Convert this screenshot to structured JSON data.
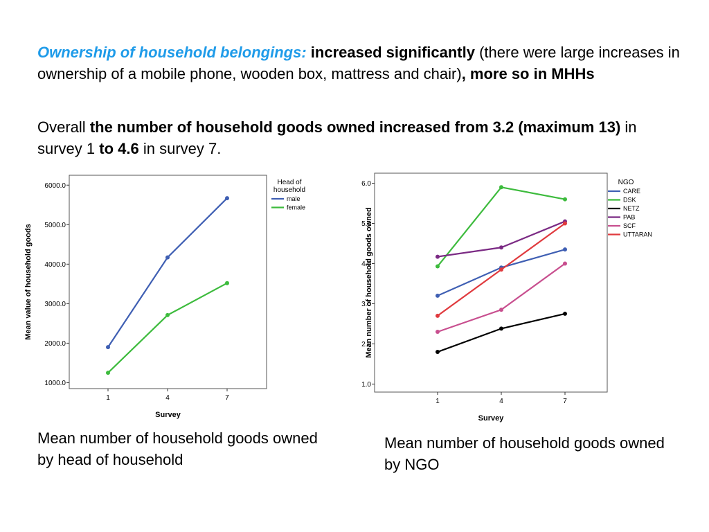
{
  "text": {
    "p1": {
      "heading": "Ownership of household belongings:",
      "bold1": "increased significantly",
      "plain1": "(there were large increases in ownership of a mobile phone, wooden box, mattress and chair)",
      "bold2": ", more so in MHHs"
    },
    "p2": {
      "plain1": "Overall",
      "bold1": "the number of household goods owned increased from 3.2 (maximum 13)",
      "plain2": "in survey 1",
      "bold2": "to 4.6",
      "plain3": "in survey 7."
    },
    "caption_left": "Mean number of household goods owned by head of household",
    "caption_right": "Mean number of household goods owned by NGO"
  },
  "colors": {
    "heading": "#1e9be9"
  },
  "chart_data": [
    {
      "type": "line",
      "title": "",
      "xlabel": "Survey",
      "ylabel": "Mean value of household goods",
      "categories": [
        "1",
        "4",
        "7"
      ],
      "yticks": [
        "1000.0",
        "2000.0",
        "3000.0",
        "4000.0",
        "5000.0",
        "6000.0"
      ],
      "ylim": [
        1000,
        6000
      ],
      "ydomain": [
        850,
        6250
      ],
      "legend_title": "Head of household",
      "legend_position": "top-right-outside",
      "grid": false,
      "series": [
        {
          "name": "male",
          "color": "#3f5fb3",
          "values": [
            1900,
            4170,
            5670
          ]
        },
        {
          "name": "female",
          "color": "#3dbb3d",
          "values": [
            1250,
            2710,
            3520
          ]
        }
      ]
    },
    {
      "type": "line",
      "title": "",
      "xlabel": "Survey",
      "ylabel": "Mean number of household goods owned",
      "categories": [
        "1",
        "4",
        "7"
      ],
      "yticks": [
        "1.0",
        "2.0",
        "3.0",
        "4.0",
        "5.0",
        "6.0"
      ],
      "ylim": [
        1,
        6
      ],
      "ydomain": [
        0.8,
        6.25
      ],
      "legend_title": "NGO",
      "legend_position": "top-right-outside",
      "grid": false,
      "series": [
        {
          "name": "CARE",
          "color": "#3f5fb3",
          "values": [
            3.2,
            3.9,
            4.35
          ]
        },
        {
          "name": "DSK",
          "color": "#3dbb3d",
          "values": [
            3.93,
            5.9,
            5.6
          ]
        },
        {
          "name": "NETZ",
          "color": "#000000",
          "values": [
            1.8,
            2.38,
            2.75
          ]
        },
        {
          "name": "PAB",
          "color": "#7b2a84",
          "values": [
            4.17,
            4.4,
            5.05
          ]
        },
        {
          "name": "SCF",
          "color": "#c84f8f",
          "values": [
            2.3,
            2.85,
            4.0
          ]
        },
        {
          "name": "UTTARAN",
          "color": "#e03a3e",
          "values": [
            2.7,
            3.85,
            5.0
          ]
        }
      ]
    }
  ]
}
